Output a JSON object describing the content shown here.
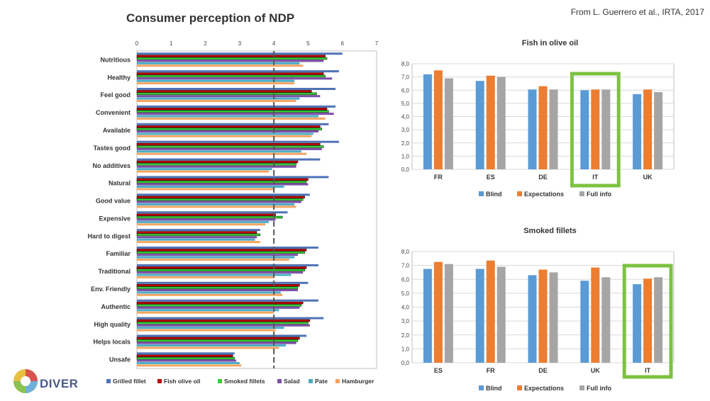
{
  "page": {
    "title": "Consumer perception of NDP",
    "source": "From L. Guerrero et al., IRTA, 2017",
    "logo_text": "DIVER"
  },
  "colors": {
    "grilled": "#4f73b5",
    "olive": "#c00000",
    "smoked": "#33cc33",
    "salad": "#7b4fa6",
    "pate": "#4bacc6",
    "hamburger": "#f4a460",
    "blind": "#5b9bd5",
    "expectations": "#ed7d31",
    "fullinfo": "#a5a5a5",
    "highlight": "#7dc242"
  },
  "chart_data": [
    {
      "type": "bar",
      "orientation": "horizontal",
      "xlim": [
        0,
        7
      ],
      "xticks": [
        "0",
        "1",
        "2",
        "3",
        "4",
        "5",
        "6",
        "7"
      ],
      "reference_line": 4,
      "legend_position": "bottom",
      "categories": [
        "Nutritious",
        "Healthy",
        "Feel good",
        "Convenient",
        "Available",
        "Tastes good",
        "No additives",
        "Natural",
        "Good value",
        "Expensive",
        "Hard to digest",
        "Familiar",
        "Traditional",
        "Env. Friendly",
        "Authentic",
        "High quality",
        "Helps locals",
        "Unsafe"
      ],
      "series": [
        {
          "name": "Grilled fillet",
          "values": [
            6.0,
            5.9,
            5.8,
            5.8,
            5.6,
            5.9,
            5.35,
            5.6,
            5.05,
            4.4,
            3.6,
            5.3,
            5.3,
            5.0,
            5.3,
            5.45,
            4.95,
            2.85
          ],
          "color_key": "grilled"
        },
        {
          "name": "Fish olive oil",
          "values": [
            5.5,
            5.45,
            5.1,
            5.55,
            5.35,
            5.35,
            4.7,
            5.0,
            4.9,
            4.05,
            3.5,
            4.95,
            4.95,
            4.75,
            4.85,
            5.05,
            4.75,
            2.8
          ],
          "color_key": "olive"
        },
        {
          "name": "Smoked fillets",
          "values": [
            5.55,
            5.5,
            5.25,
            5.6,
            5.4,
            5.45,
            4.65,
            4.95,
            4.85,
            4.25,
            3.6,
            4.9,
            4.9,
            4.7,
            4.8,
            5.0,
            4.7,
            2.85
          ],
          "color_key": "smoked"
        },
        {
          "name": "Salad",
          "values": [
            5.45,
            5.7,
            5.35,
            5.75,
            5.3,
            5.4,
            4.65,
            5.0,
            4.8,
            4.05,
            3.5,
            4.7,
            4.85,
            4.7,
            4.75,
            5.05,
            4.65,
            2.9
          ],
          "color_key": "salad"
        },
        {
          "name": "Pate",
          "values": [
            4.75,
            4.6,
            4.75,
            5.3,
            5.15,
            4.8,
            3.95,
            4.3,
            4.6,
            3.85,
            3.45,
            4.6,
            4.5,
            4.2,
            4.15,
            4.3,
            4.35,
            3.0
          ],
          "color_key": "pate"
        },
        {
          "name": "Hamburger",
          "values": [
            4.85,
            4.6,
            4.65,
            5.5,
            5.1,
            4.95,
            3.85,
            4.0,
            4.65,
            3.75,
            3.6,
            4.45,
            4.0,
            4.25,
            4.0,
            4.05,
            4.15,
            3.05
          ],
          "color_key": "hamburger"
        }
      ]
    },
    {
      "type": "bar",
      "title": "Fish in olive oil",
      "ylim": [
        0,
        8
      ],
      "yticks": [
        "0,0",
        "1,0",
        "2,0",
        "3,0",
        "4,0",
        "5,0",
        "6,0",
        "7,0",
        "8,0"
      ],
      "grid": true,
      "legend_position": "bottom",
      "categories": [
        "FR",
        "ES",
        "DE",
        "IT",
        "UK"
      ],
      "highlighted_category": "IT",
      "series": [
        {
          "name": "Blind",
          "values": [
            7.2,
            6.7,
            6.05,
            6.0,
            5.7
          ],
          "color_key": "blind"
        },
        {
          "name": "Expectations",
          "values": [
            7.5,
            7.1,
            6.3,
            6.05,
            6.05
          ],
          "color_key": "expectations"
        },
        {
          "name": "Full info",
          "values": [
            6.9,
            7.0,
            6.05,
            6.05,
            5.85
          ],
          "color_key": "fullinfo"
        }
      ]
    },
    {
      "type": "bar",
      "title": "Smoked fillets",
      "ylim": [
        0,
        8
      ],
      "yticks": [
        "0,0",
        "1,0",
        "2,0",
        "3,0",
        "4,0",
        "5,0",
        "6,0",
        "7,0",
        "8,0"
      ],
      "grid": true,
      "legend_position": "bottom",
      "categories": [
        "ES",
        "FR",
        "DE",
        "UK",
        "IT"
      ],
      "highlighted_category": "IT",
      "series": [
        {
          "name": "Blind",
          "values": [
            6.75,
            6.75,
            6.3,
            5.9,
            5.65
          ],
          "color_key": "blind"
        },
        {
          "name": "Expectations",
          "values": [
            7.25,
            7.35,
            6.7,
            6.85,
            6.05
          ],
          "color_key": "expectations"
        },
        {
          "name": "Full info",
          "values": [
            7.1,
            6.9,
            6.5,
            6.15,
            6.15
          ],
          "color_key": "fullinfo"
        }
      ]
    }
  ]
}
